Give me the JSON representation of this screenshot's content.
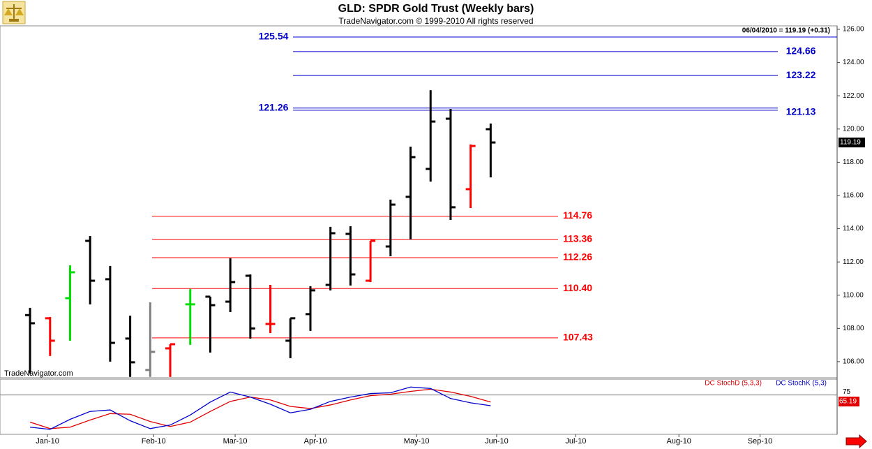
{
  "chart_data": [
    {
      "type": "ohlc",
      "title": "GLD:  SPDR Gold Trust  (Weekly bars)",
      "subtitle": "TradeNavigator.com © 1999-2010 All rights reserved",
      "header": "06/04/2010 = 119.19 (+0.31)",
      "watermark": "TradeNavigator.com",
      "x": [
        0,
        1,
        2,
        3,
        4,
        5,
        6,
        7,
        8,
        9,
        10,
        11,
        12,
        13,
        14,
        15,
        16,
        17,
        18,
        19,
        20,
        21,
        22,
        23
      ],
      "open": [
        108.8,
        108.61,
        109.82,
        113.27,
        110.96,
        107.39,
        105.5,
        106.8,
        109.45,
        109.91,
        109.61,
        111.17,
        108.27,
        107.26,
        108.86,
        110.62,
        113.69,
        110.87,
        112.93,
        115.92,
        117.6,
        120.62,
        116.38,
        119.99
      ],
      "high": [
        109.24,
        108.69,
        111.8,
        113.56,
        111.76,
        108.77,
        109.57,
        107.05,
        110.37,
        109.91,
        112.22,
        111.25,
        110.62,
        108.61,
        110.54,
        114.11,
        114.15,
        113.27,
        115.75,
        118.94,
        122.34,
        121.21,
        119.07,
        120.33
      ],
      "low": [
        105.29,
        106.34,
        107.26,
        109.45,
        106.0,
        105.08,
        105.08,
        105.08,
        107.01,
        106.55,
        108.98,
        107.39,
        107.72,
        106.21,
        107.85,
        110.29,
        110.58,
        110.79,
        112.34,
        113.35,
        116.84,
        114.53,
        115.24,
        117.09
      ],
      "close": [
        108.31,
        107.26,
        111.38,
        110.87,
        107.13,
        105.96,
        106.59,
        107.05,
        109.45,
        109.4,
        110.79,
        108.0,
        108.27,
        108.61,
        110.29,
        113.73,
        111.25,
        113.27,
        115.45,
        118.31,
        120.45,
        115.29,
        118.98,
        119.19
      ],
      "colors": [
        "#000000",
        "#ff0000",
        "#00dd00",
        "#000000",
        "#000000",
        "#000000",
        "#808080",
        "#ff0000",
        "#00dd00",
        "#000000",
        "#000000",
        "#000000",
        "#ff0000",
        "#000000",
        "#000000",
        "#000000",
        "#000000",
        "#ff0000",
        "#000000",
        "#000000",
        "#000000",
        "#000000",
        "#ff0000",
        "#000000"
      ],
      "last_price": 119.19,
      "upper_color": "#0000cc",
      "upper_levels": [
        125.54,
        124.66,
        123.22,
        121.26,
        121.13
      ],
      "lower_color": "#ff0000",
      "lower_levels": [
        114.76,
        113.36,
        112.26,
        {
          "value": 110.4,
          "label": "110.40"
        },
        107.43
      ],
      "xlim": [
        -1.5,
        40.3
      ],
      "ylim": [
        105.03,
        126.21
      ],
      "yticks": [
        {
          "value": 106,
          "label": "106.00"
        },
        {
          "value": 108,
          "label": "108.00"
        },
        {
          "value": 110,
          "label": "110.00"
        },
        {
          "value": 112,
          "label": "112.00"
        },
        {
          "value": 114,
          "label": "114.00"
        },
        {
          "value": 116,
          "label": "116.00"
        },
        {
          "value": 118,
          "label": "118.00"
        },
        {
          "value": 120,
          "label": "120.00"
        },
        {
          "value": 122,
          "label": "122.00"
        },
        {
          "value": 124,
          "label": "124.00"
        },
        {
          "value": 126,
          "label": "126.00"
        }
      ]
    },
    {
      "type": "line",
      "x": [
        0,
        1,
        2,
        3,
        4,
        5,
        6,
        7,
        8,
        9,
        10,
        11,
        12,
        13,
        14,
        15,
        16,
        17,
        18,
        19,
        20,
        21,
        22,
        23
      ],
      "series": [
        {
          "name": "DC StochD (5,3,3)",
          "color": "#e00000",
          "values": [
            34.6,
            25.0,
            27.1,
            37.8,
            47.3,
            46.3,
            35.6,
            28.2,
            34.6,
            50.5,
            65.4,
            71.8,
            67.6,
            58.0,
            54.8,
            60.1,
            67.6,
            73.9,
            76.1,
            80.3,
            83.5,
            79.3,
            72.9,
            64.4
          ]
        },
        {
          "name": "DC StochK (5,3)",
          "color": "#0000cc",
          "values": [
            27.1,
            23.9,
            38.8,
            50.5,
            52.7,
            36.7,
            25.0,
            30.3,
            45.2,
            64.4,
            79.3,
            71.8,
            61.2,
            48.4,
            53.7,
            65.4,
            71.8,
            77.1,
            78.2,
            86.7,
            84.6,
            69.7,
            63.3,
            59.0
          ]
        }
      ],
      "last_value": 65.19,
      "xlim": [
        -1.5,
        40.3
      ],
      "ylim": [
        16.5,
        98.4
      ],
      "yticks": [
        75
      ],
      "xticks": [
        {
          "value": 0.87,
          "label": "Jan-10"
        },
        {
          "value": 6.17,
          "label": "Feb-10"
        },
        {
          "value": 10.24,
          "label": "Mar-10"
        },
        {
          "value": 14.25,
          "label": "Apr-10"
        },
        {
          "value": 19.3,
          "label": "May-10"
        },
        {
          "value": 23.3,
          "label": "Jun-10"
        },
        {
          "value": 27.25,
          "label": "Jul-10"
        },
        {
          "value": 32.4,
          "label": "Aug-10"
        },
        {
          "value": 36.45,
          "label": "Sep-10"
        }
      ]
    }
  ]
}
